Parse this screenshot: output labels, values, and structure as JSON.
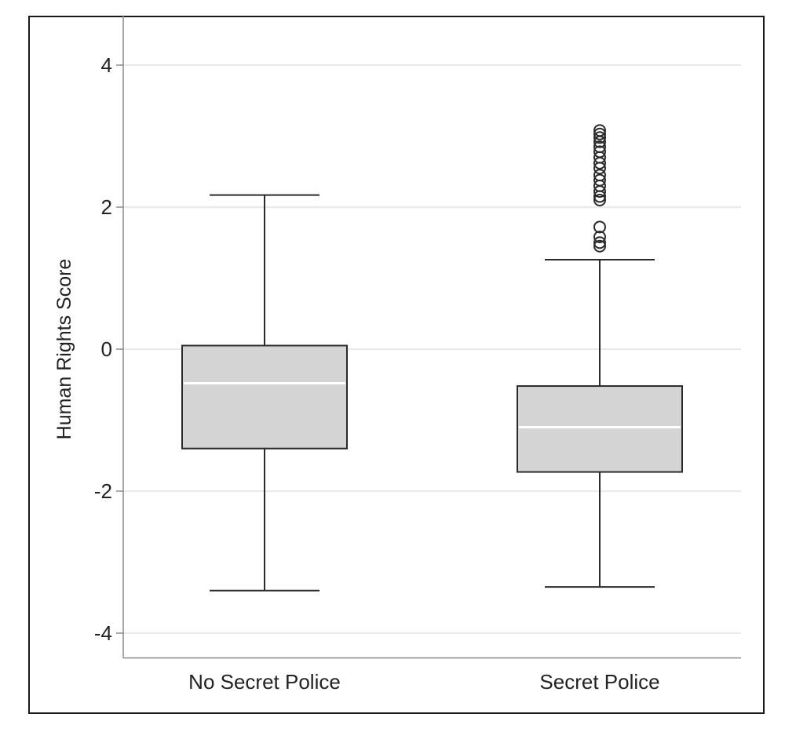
{
  "chart_data": {
    "type": "boxplot",
    "title": "",
    "xlabel": "",
    "ylabel": "Human Rights Score",
    "ylim": [
      -4.35,
      4.7
    ],
    "yticks": [
      4,
      2,
      0,
      -2,
      -4
    ],
    "ytick_labels": [
      "4",
      "2",
      "0",
      "-2",
      "-4"
    ],
    "grid": "horizontal",
    "categories": [
      "No Secret Police",
      "Secret Police"
    ],
    "boxes": [
      {
        "category": "No Secret Police",
        "whisker_low": -3.4,
        "q1": -1.4,
        "median": -0.48,
        "q3": 0.05,
        "whisker_high": 2.17,
        "outliers": []
      },
      {
        "category": "Secret Police",
        "whisker_low": -3.35,
        "q1": -1.73,
        "median": -1.1,
        "q3": -0.52,
        "whisker_high": 1.26,
        "outliers": [
          1.45,
          1.5,
          1.58,
          1.72,
          2.1,
          2.15,
          2.22,
          2.3,
          2.38,
          2.45,
          2.55,
          2.62,
          2.7,
          2.78,
          2.85,
          2.92,
          2.98,
          3.03,
          3.08
        ]
      }
    ],
    "colors": {
      "box_fill": "#d4d4d4",
      "box_stroke": "#2a2a2a",
      "median_line": "#ffffff",
      "whisker": "#2a2a2a",
      "outlier": "#2a2a2a",
      "grid": "#e4e4e4",
      "axis": "#8c8c8c"
    }
  }
}
